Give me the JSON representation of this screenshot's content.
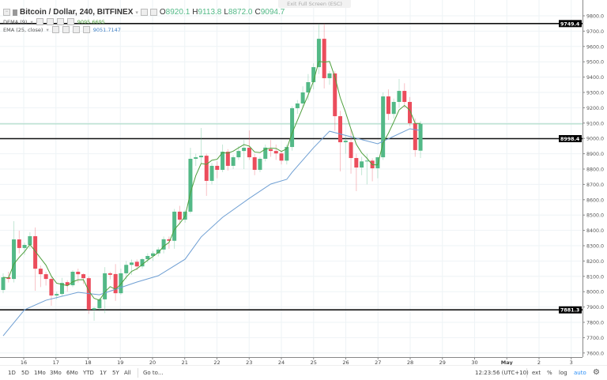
{
  "header": {
    "symbol_title": "Bitcoin / Dollar, 240, BITFINEX",
    "open_label": "O",
    "open": "8920.1",
    "high_label": "H",
    "high": "9113.8",
    "low_label": "L",
    "low": "8872.0",
    "close_label": "C",
    "close": "9094.7",
    "dema_label": "DEMA (9)",
    "dema_value": "9095.6695",
    "ema_label": "EMA (25, close)",
    "ema_value": "9051.7147"
  },
  "exit_fullscreen": "Exit Full Screen (ESC)",
  "toolbar": {
    "ranges": [
      "1D",
      "5D",
      "1Mo",
      "3Mo",
      "6Mo",
      "YTD",
      "1Y",
      "5Y",
      "All"
    ],
    "goto": "Go to...",
    "clock": "12:23:56 (UTC+10)",
    "ext": "ext",
    "percent": "%",
    "log": "log",
    "auto": "auto"
  },
  "colors": {
    "up": "#53b987",
    "down": "#eb4d5c",
    "dema": "#4e9f3d",
    "ema": "#6f9fd3",
    "price_line": "#9fd8bf",
    "level": "#111111"
  },
  "chart_data": {
    "type": "candlestick",
    "interval": "240",
    "ylim": [
      7600,
      9800
    ],
    "y_ticks": [
      "9800.0",
      "9700.0",
      "9600.0",
      "9500.0",
      "9400.0",
      "9300.0",
      "9200.0",
      "9100.0",
      "9000.0",
      "8900.0",
      "8800.0",
      "8700.0",
      "8600.0",
      "8500.0",
      "8400.0",
      "8300.0",
      "8200.0",
      "8100.0",
      "8000.0",
      "7900.0",
      "7800.0",
      "7700.0",
      "7600.0"
    ],
    "x_ticks": [
      "16",
      "17",
      "18",
      "19",
      "20",
      "21",
      "22",
      "23",
      "24",
      "25",
      "26",
      "27",
      "28",
      "29",
      "30",
      "May",
      "2",
      "3"
    ],
    "grid": true,
    "horizontal_levels": [
      {
        "value": 9749.4,
        "label": "9749.4"
      },
      {
        "value": 8998.4,
        "label": "8998.4"
      },
      {
        "value": 7881.3,
        "label": "7881.3"
      }
    ],
    "current_price": 9094.7,
    "candles": [
      {
        "t": "04-15 04:00",
        "o": 8011,
        "h": 8120,
        "l": 7990,
        "c": 8094
      },
      {
        "t": "04-15 08:00",
        "o": 8094,
        "h": 8130,
        "l": 8060,
        "c": 8083
      },
      {
        "t": "04-15 12:00",
        "o": 8083,
        "h": 8460,
        "l": 8060,
        "c": 8341
      },
      {
        "t": "04-15 16:00",
        "o": 8341,
        "h": 8398,
        "l": 8250,
        "c": 8285
      },
      {
        "t": "04-15 20:00",
        "o": 8285,
        "h": 8320,
        "l": 8240,
        "c": 8305
      },
      {
        "t": "04-16 00:00",
        "o": 8305,
        "h": 8388,
        "l": 8280,
        "c": 8362
      },
      {
        "t": "04-16 04:00",
        "o": 8362,
        "h": 8419,
        "l": 8006,
        "c": 8150
      },
      {
        "t": "04-16 08:00",
        "o": 8150,
        "h": 8170,
        "l": 8030,
        "c": 8114
      },
      {
        "t": "04-16 12:00",
        "o": 8114,
        "h": 8130,
        "l": 8040,
        "c": 8083
      },
      {
        "t": "04-16 16:00",
        "o": 8083,
        "h": 8095,
        "l": 7908,
        "c": 7975
      },
      {
        "t": "04-16 20:00",
        "o": 7975,
        "h": 8000,
        "l": 7950,
        "c": 7985
      },
      {
        "t": "04-17 00:00",
        "o": 7985,
        "h": 8090,
        "l": 7970,
        "c": 8057
      },
      {
        "t": "04-17 04:00",
        "o": 8062,
        "h": 8075,
        "l": 8000,
        "c": 8042
      },
      {
        "t": "04-17 08:00",
        "o": 8042,
        "h": 8140,
        "l": 8030,
        "c": 8130
      },
      {
        "t": "04-17 12:00",
        "o": 8130,
        "h": 8150,
        "l": 8060,
        "c": 8114
      },
      {
        "t": "04-17 16:00",
        "o": 8114,
        "h": 8120,
        "l": 8050,
        "c": 8088
      },
      {
        "t": "04-17 20:00",
        "o": 8088,
        "h": 8100,
        "l": 7855,
        "c": 7882
      },
      {
        "t": "04-18 00:00",
        "o": 7882,
        "h": 7900,
        "l": 7810,
        "c": 7892
      },
      {
        "t": "04-18 04:00",
        "o": 7892,
        "h": 7960,
        "l": 7870,
        "c": 7950
      },
      {
        "t": "04-18 08:00",
        "o": 7950,
        "h": 8160,
        "l": 7860,
        "c": 8120
      },
      {
        "t": "04-18 12:00",
        "o": 8120,
        "h": 8130,
        "l": 8080,
        "c": 8110
      },
      {
        "t": "04-18 16:00",
        "o": 8115,
        "h": 8180,
        "l": 7940,
        "c": 7990
      },
      {
        "t": "04-18 20:00",
        "o": 7990,
        "h": 8150,
        "l": 7980,
        "c": 8120
      },
      {
        "t": "04-19 00:00",
        "o": 8120,
        "h": 8200,
        "l": 8080,
        "c": 8175
      },
      {
        "t": "04-19 04:00",
        "o": 8175,
        "h": 8210,
        "l": 8110,
        "c": 8190
      },
      {
        "t": "04-19 08:00",
        "o": 8195,
        "h": 8210,
        "l": 8140,
        "c": 8165
      },
      {
        "t": "04-19 12:00",
        "o": 8165,
        "h": 8220,
        "l": 8150,
        "c": 8212
      },
      {
        "t": "04-19 16:00",
        "o": 8212,
        "h": 8250,
        "l": 8190,
        "c": 8233
      },
      {
        "t": "04-19 20:00",
        "o": 8233,
        "h": 8265,
        "l": 8200,
        "c": 8250
      },
      {
        "t": "04-20 00:00",
        "o": 8250,
        "h": 8290,
        "l": 8230,
        "c": 8275
      },
      {
        "t": "04-20 04:00",
        "o": 8275,
        "h": 8360,
        "l": 8250,
        "c": 8342
      },
      {
        "t": "04-20 08:00",
        "o": 8342,
        "h": 8360,
        "l": 8280,
        "c": 8332
      },
      {
        "t": "04-20 12:00",
        "o": 8332,
        "h": 8540,
        "l": 8280,
        "c": 8522
      },
      {
        "t": "04-20 16:00",
        "o": 8522,
        "h": 8560,
        "l": 8440,
        "c": 8470
      },
      {
        "t": "04-20 20:00",
        "o": 8470,
        "h": 8530,
        "l": 8450,
        "c": 8522
      },
      {
        "t": "04-21 00:00",
        "o": 8522,
        "h": 8939,
        "l": 8510,
        "c": 8867
      },
      {
        "t": "04-21 04:00",
        "o": 8867,
        "h": 8900,
        "l": 8820,
        "c": 8877
      },
      {
        "t": "04-21 08:00",
        "o": 8877,
        "h": 9068,
        "l": 8840,
        "c": 8887
      },
      {
        "t": "04-21 12:00",
        "o": 8887,
        "h": 8900,
        "l": 8625,
        "c": 8723
      },
      {
        "t": "04-21 16:00",
        "o": 8723,
        "h": 8840,
        "l": 8700,
        "c": 8821
      },
      {
        "t": "04-21 20:00",
        "o": 8821,
        "h": 8850,
        "l": 8740,
        "c": 8795
      },
      {
        "t": "04-22 00:00",
        "o": 8795,
        "h": 8960,
        "l": 8780,
        "c": 8913
      },
      {
        "t": "04-22 04:00",
        "o": 8913,
        "h": 8930,
        "l": 8790,
        "c": 8821
      },
      {
        "t": "04-22 08:00",
        "o": 8821,
        "h": 8890,
        "l": 8800,
        "c": 8877
      },
      {
        "t": "04-22 12:00",
        "o": 8877,
        "h": 8950,
        "l": 8860,
        "c": 8918
      },
      {
        "t": "04-22 16:00",
        "o": 8918,
        "h": 8990,
        "l": 8800,
        "c": 8939
      },
      {
        "t": "04-22 20:00",
        "o": 8939,
        "h": 9052,
        "l": 8860,
        "c": 8877
      },
      {
        "t": "04-23 00:00",
        "o": 8877,
        "h": 8900,
        "l": 8760,
        "c": 8795
      },
      {
        "t": "04-23 04:00",
        "o": 8795,
        "h": 8880,
        "l": 8780,
        "c": 8867
      },
      {
        "t": "04-23 08:00",
        "o": 8867,
        "h": 8960,
        "l": 8850,
        "c": 8940
      },
      {
        "t": "04-23 12:00",
        "o": 8930,
        "h": 8990,
        "l": 8880,
        "c": 8918
      },
      {
        "t": "04-23 16:00",
        "o": 8918,
        "h": 8960,
        "l": 8860,
        "c": 8902
      },
      {
        "t": "04-23 20:00",
        "o": 8902,
        "h": 8920,
        "l": 8830,
        "c": 8855
      },
      {
        "t": "04-24 00:00",
        "o": 8855,
        "h": 8960,
        "l": 8830,
        "c": 8944
      },
      {
        "t": "04-24 04:00",
        "o": 8944,
        "h": 9210,
        "l": 8920,
        "c": 9197
      },
      {
        "t": "04-24 08:00",
        "o": 9197,
        "h": 9250,
        "l": 9160,
        "c": 9228
      },
      {
        "t": "04-24 12:00",
        "o": 9228,
        "h": 9340,
        "l": 9200,
        "c": 9300
      },
      {
        "t": "04-24 16:00",
        "o": 9300,
        "h": 9420,
        "l": 9250,
        "c": 9367
      },
      {
        "t": "04-24 20:00",
        "o": 9367,
        "h": 9490,
        "l": 9320,
        "c": 9465
      },
      {
        "t": "04-25 00:00",
        "o": 9465,
        "h": 9748,
        "l": 9420,
        "c": 9650
      },
      {
        "t": "04-25 04:00",
        "o": 9650,
        "h": 9749,
        "l": 9326,
        "c": 9393
      },
      {
        "t": "04-25 08:00",
        "o": 9393,
        "h": 9440,
        "l": 9350,
        "c": 9424
      },
      {
        "t": "04-25 12:00",
        "o": 9424,
        "h": 9440,
        "l": 9050,
        "c": 9145
      },
      {
        "t": "04-25 16:00",
        "o": 9145,
        "h": 9180,
        "l": 8785,
        "c": 8975
      },
      {
        "t": "04-25 20:00",
        "o": 8975,
        "h": 9020,
        "l": 8900,
        "c": 8985
      },
      {
        "t": "04-26 00:00",
        "o": 8975,
        "h": 9060,
        "l": 8770,
        "c": 8872
      },
      {
        "t": "04-26 04:00",
        "o": 8872,
        "h": 8900,
        "l": 8656,
        "c": 8810
      },
      {
        "t": "04-26 08:00",
        "o": 8810,
        "h": 8880,
        "l": 8760,
        "c": 8850
      },
      {
        "t": "04-26 12:00",
        "o": 8850,
        "h": 8900,
        "l": 8700,
        "c": 8855
      },
      {
        "t": "04-26 16:00",
        "o": 8855,
        "h": 8870,
        "l": 8720,
        "c": 8805
      },
      {
        "t": "04-26 20:00",
        "o": 8805,
        "h": 8880,
        "l": 8740,
        "c": 8877
      },
      {
        "t": "04-27 00:00",
        "o": 8877,
        "h": 9300,
        "l": 8860,
        "c": 9274
      },
      {
        "t": "04-27 04:00",
        "o": 9274,
        "h": 9320,
        "l": 9120,
        "c": 9160
      },
      {
        "t": "04-27 08:00",
        "o": 9160,
        "h": 9260,
        "l": 9130,
        "c": 9238
      },
      {
        "t": "04-27 12:00",
        "o": 9238,
        "h": 9388,
        "l": 9200,
        "c": 9310
      },
      {
        "t": "04-27 16:00",
        "o": 9310,
        "h": 9360,
        "l": 9200,
        "c": 9238
      },
      {
        "t": "04-27 20:00",
        "o": 9238,
        "h": 9270,
        "l": 9080,
        "c": 9099
      },
      {
        "t": "04-28 00:00",
        "o": 9099,
        "h": 9130,
        "l": 8880,
        "c": 8924
      },
      {
        "t": "04-28 04:00",
        "o": 8920.1,
        "h": 9113.8,
        "l": 8872.0,
        "c": 9094.7
      }
    ],
    "ema_series": {
      "name": "EMA (25, close)",
      "points": [
        {
          "t": "04-15 04:00",
          "v": 7712
        },
        {
          "t": "04-15 20:00",
          "v": 7882
        },
        {
          "t": "04-16 12:00",
          "v": 7944
        },
        {
          "t": "04-17 12:00",
          "v": 7996
        },
        {
          "t": "04-18 04:00",
          "v": 7980
        },
        {
          "t": "04-19 08:00",
          "v": 8063
        },
        {
          "t": "04-20 00:00",
          "v": 8104
        },
        {
          "t": "04-20 20:00",
          "v": 8212
        },
        {
          "t": "04-21 08:00",
          "v": 8357
        },
        {
          "t": "04-22 00:00",
          "v": 8485
        },
        {
          "t": "04-22 20:00",
          "v": 8609
        },
        {
          "t": "04-23 12:00",
          "v": 8702
        },
        {
          "t": "04-24 00:00",
          "v": 8733
        },
        {
          "t": "04-24 04:00",
          "v": 8779
        },
        {
          "t": "04-24 20:00",
          "v": 8939
        },
        {
          "t": "04-25 08:00",
          "v": 9047
        },
        {
          "t": "04-26 20:00",
          "v": 8965
        },
        {
          "t": "04-27 20:00",
          "v": 9063
        },
        {
          "t": "04-28 04:00",
          "v": 9051.7
        }
      ]
    },
    "dema_series": {
      "name": "DEMA (9)",
      "period": 9
    }
  }
}
